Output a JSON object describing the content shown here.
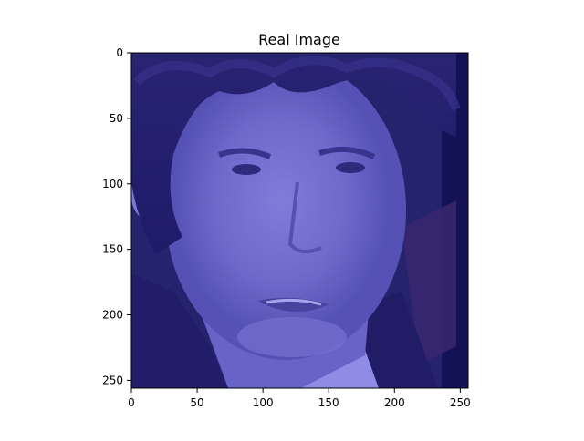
{
  "chart_data": {
    "type": "image",
    "title": "Real Image",
    "xlabel": "",
    "ylabel": "",
    "xlim": [
      0,
      256
    ],
    "ylim": [
      256,
      0
    ],
    "x_ticks": [
      0,
      50,
      100,
      150,
      200,
      250
    ],
    "y_ticks": [
      0,
      50,
      100,
      150,
      200,
      250
    ],
    "x_tick_labels": [
      "0",
      "50",
      "100",
      "150",
      "200",
      "250"
    ],
    "y_tick_labels": [
      "0",
      "50",
      "100",
      "150",
      "200",
      "250"
    ],
    "image_description": "close-up face portrait of a man with curly dark hair, blue-purple tint",
    "tint_color": "#6c6ccc",
    "grid": false
  }
}
